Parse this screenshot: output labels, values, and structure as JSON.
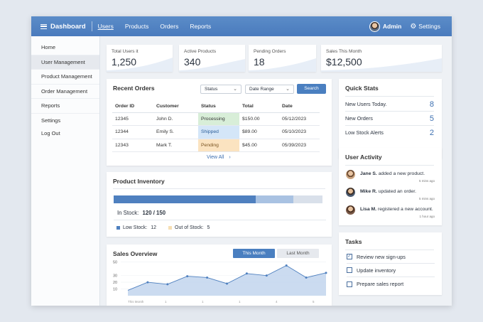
{
  "header": {
    "title": "Dashboard",
    "nav": [
      "Users",
      "Products",
      "Orders",
      "Reports"
    ],
    "user": "Admin",
    "settings": "Settings"
  },
  "sidebar": {
    "items": [
      "Home",
      "User Management",
      "Product Management",
      "Order Management",
      "Reports",
      "Settings",
      "Log Out"
    ]
  },
  "stats": [
    {
      "label": "Total Users it",
      "value": "1,250"
    },
    {
      "label": "Active Products",
      "value": "340"
    },
    {
      "label": "Pending Orders",
      "value": "18"
    },
    {
      "label": "Sales This Month",
      "value": "$12,500"
    }
  ],
  "orders": {
    "title": "Recent Orders",
    "status_filter": "Status",
    "date_filter": "Date Range",
    "search": "Search",
    "columns": [
      "Order ID",
      "Customer",
      "Status",
      "Total",
      "Date"
    ],
    "rows": [
      [
        "12345",
        "John D.",
        "Processing",
        "$150.00",
        "05/12/2023"
      ],
      [
        "12344",
        "Emily S.",
        "Shipped",
        "$89.00",
        "05/10/2023"
      ],
      [
        "12343",
        "Mark T.",
        "Pending",
        "$45.00",
        "05/39/2023"
      ]
    ],
    "view_all": "View All"
  },
  "inventory": {
    "title": "Product Inventory",
    "in_stock_label": "In Stock:",
    "in_stock_value": "120 / 150",
    "in_stock_fraction": 0.8,
    "low_label": "Low Stock:",
    "low_value": "12",
    "out_label": "Out of Stock:",
    "out_value": "5",
    "low_fraction": 0.08
  },
  "sales": {
    "title": "Sales Overview",
    "tab_active": "This Month",
    "tab_inactive": "Last Month"
  },
  "chart_data": {
    "type": "area",
    "ylim": [
      0,
      55
    ],
    "yticks": [
      50,
      30,
      20,
      10
    ],
    "xticks": [
      "This Month",
      "1",
      "1",
      "1",
      "4",
      "5"
    ],
    "values": [
      8,
      20,
      17,
      29,
      27,
      18,
      33,
      30,
      45,
      27,
      34
    ],
    "color": "#4f80bf"
  },
  "quick_stats": {
    "title": "Quick Stats",
    "items": [
      {
        "label": "New Users Today.",
        "value": "8"
      },
      {
        "label": "New Orders",
        "value": "5"
      },
      {
        "label": "Low Stock Alerts",
        "value": "2"
      }
    ]
  },
  "activity": {
    "title": "User Activity",
    "items": [
      {
        "name": "Jane S.",
        "text": "added a new product.",
        "time": "5 mins ago"
      },
      {
        "name": "Mike R.",
        "text": "updated an order.",
        "time": "5 mins ago"
      },
      {
        "name": "Lisa M.",
        "text": "registered a new account.",
        "time": "1 hour ago"
      }
    ]
  },
  "tasks": {
    "title": "Tasks",
    "items": [
      {
        "label": "Review new sign-ups",
        "checked": true
      },
      {
        "label": "Update inventory",
        "checked": false
      },
      {
        "label": "Prepare sales report",
        "checked": false
      }
    ]
  },
  "colors": {
    "accent": "#4a7fc0",
    "header": "#5b8cc8"
  }
}
